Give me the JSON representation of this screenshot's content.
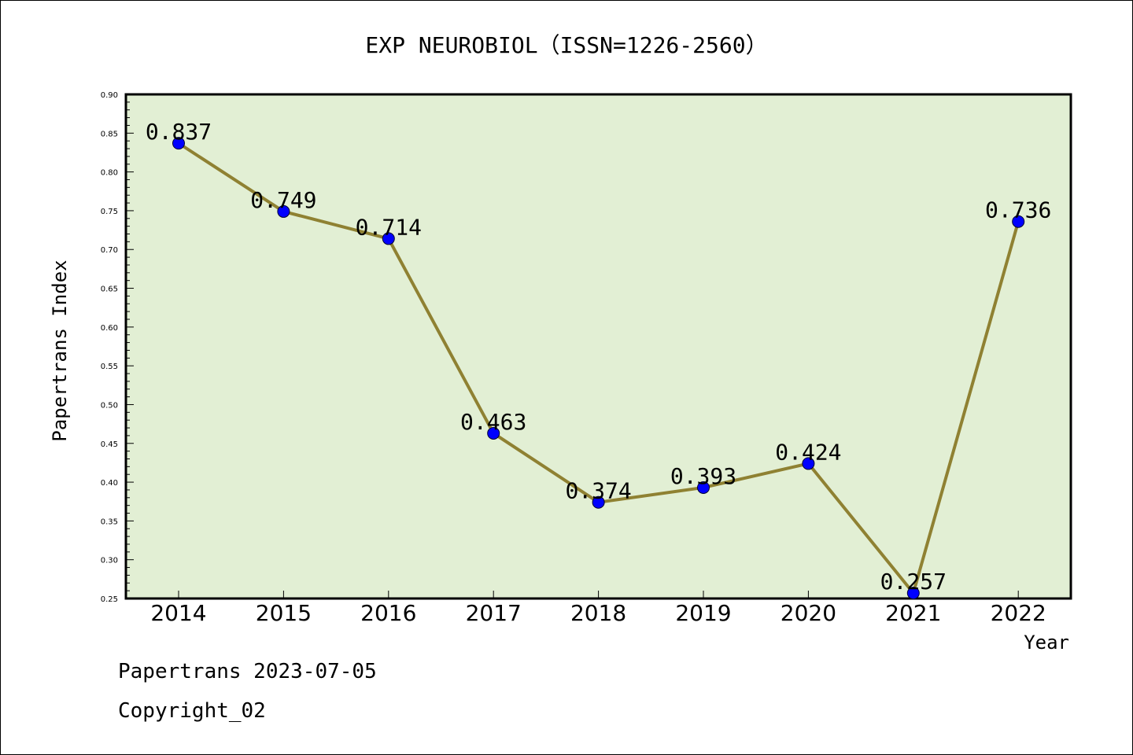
{
  "chart_data": {
    "type": "line",
    "title": "EXP NEUROBIOL（ISSN=1226-2560）",
    "xlabel": "Year",
    "ylabel": "Papertrans Index",
    "categories": [
      "2014",
      "2015",
      "2016",
      "2017",
      "2018",
      "2019",
      "2020",
      "2021",
      "2022"
    ],
    "series": [
      {
        "values": [
          0.837,
          0.749,
          0.714,
          0.463,
          0.374,
          0.393,
          0.424,
          0.257,
          0.736
        ]
      }
    ],
    "data_labels": [
      "0.837",
      "0.749",
      "0.714",
      "0.463",
      "0.374",
      "0.393",
      "0.424",
      "0.257",
      "0.736"
    ],
    "ylim": [
      0.25,
      0.9
    ],
    "yticks": [
      "0.25",
      "0.30",
      "0.35",
      "0.40",
      "0.45",
      "0.50",
      "0.55",
      "0.60",
      "0.65",
      "0.70",
      "0.75",
      "0.80",
      "0.85",
      "0.90"
    ],
    "grid": false,
    "colors": {
      "plot_background": "#e2efd4",
      "line": "#8f8132",
      "marker": "#0000ff"
    }
  },
  "footer": {
    "date_line": "Papertrans 2023-07-05",
    "copyright": "Copyright_02"
  }
}
